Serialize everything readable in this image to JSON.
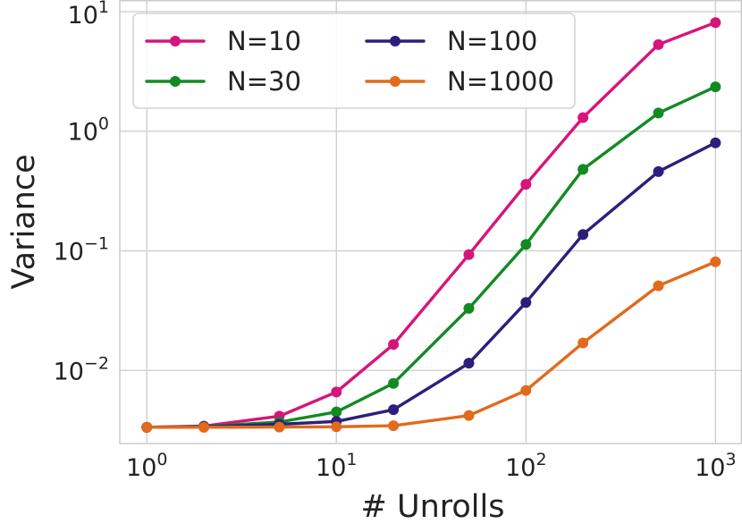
{
  "chart_data": {
    "type": "line",
    "title": "",
    "xlabel": "# Unrolls",
    "ylabel": "Variance",
    "xscale": "log",
    "yscale": "log",
    "xlim": [
      0.72,
      1380
    ],
    "ylim": [
      0.00245,
      12.5
    ],
    "grid": true,
    "legend_position": "top-left",
    "legend_columns": 2,
    "x_ticks": [
      1,
      10,
      100,
      1000
    ],
    "x_tick_exponents": [
      "0",
      "1",
      "2",
      "3"
    ],
    "y_ticks": [
      0.01,
      0.1,
      1,
      10
    ],
    "y_tick_exponents": [
      "−2",
      "−1",
      "0",
      "1"
    ],
    "tick_base": "10",
    "x": [
      1,
      2,
      5,
      10,
      20,
      50,
      100,
      200,
      500,
      1000
    ],
    "series": [
      {
        "name": "N=10",
        "color": "#d6157a",
        "values": [
          0.00335,
          0.00343,
          0.00415,
          0.0066,
          0.0165,
          0.093,
          0.36,
          1.3,
          5.3,
          8.1
        ]
      },
      {
        "name": "N=30",
        "color": "#138a22",
        "values": [
          0.00335,
          0.0034,
          0.0037,
          0.0045,
          0.0078,
          0.033,
          0.113,
          0.48,
          1.42,
          2.35
        ]
      },
      {
        "name": "N=100",
        "color": "#2c1f7c",
        "values": [
          0.00335,
          0.00338,
          0.00355,
          0.00375,
          0.0047,
          0.0115,
          0.037,
          0.137,
          0.46,
          0.8
        ]
      },
      {
        "name": "N=1000",
        "color": "#e26a1c",
        "values": [
          0.00335,
          0.00335,
          0.00336,
          0.00338,
          0.00345,
          0.0042,
          0.0068,
          0.017,
          0.051,
          0.081
        ]
      }
    ]
  }
}
